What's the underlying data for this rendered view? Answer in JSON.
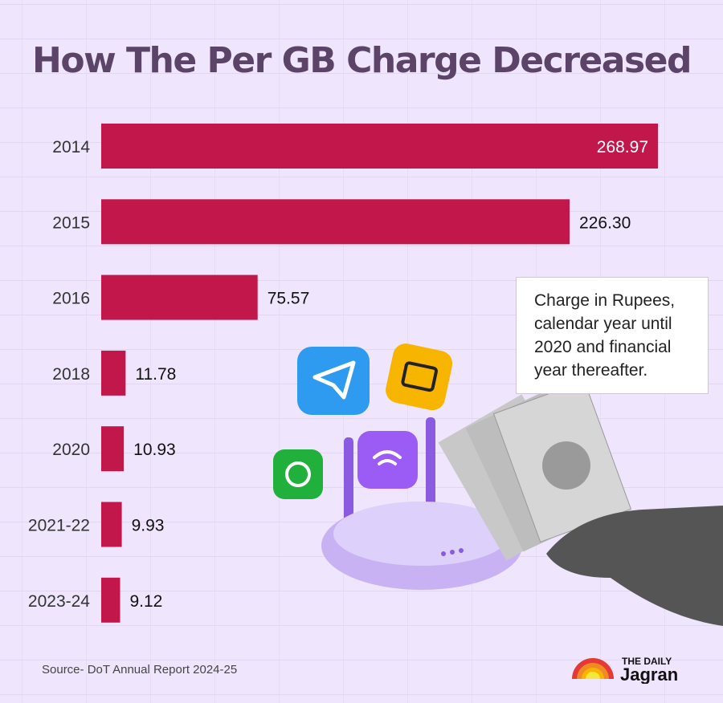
{
  "chart_data": {
    "type": "bar",
    "orientation": "horizontal",
    "title": "How The Per GB Charge Decreased",
    "categories": [
      "2014",
      "2015",
      "2016",
      "2018",
      "2020",
      "2021-22",
      "2023-24"
    ],
    "values": [
      268.97,
      226.3,
      75.57,
      11.78,
      10.93,
      9.93,
      9.12
    ],
    "value_labels": [
      "268.97",
      "226.30",
      "75.57",
      "11.78",
      "10.93",
      "9.93",
      "9.12"
    ],
    "xlim": [
      0,
      268.97
    ],
    "bar_color": "#c2174a",
    "grid": false,
    "legend": "none"
  },
  "note": "Charge in Rupees, calendar year until 2020 and financial year thereafter.",
  "source": "Source- DoT Annual Report 2024-25",
  "logo": {
    "line1": "THE DAILY",
    "line2": "Jagran"
  },
  "colors": {
    "title": "#5c4468",
    "background": "#efe6fd",
    "bar": "#c2174a"
  }
}
